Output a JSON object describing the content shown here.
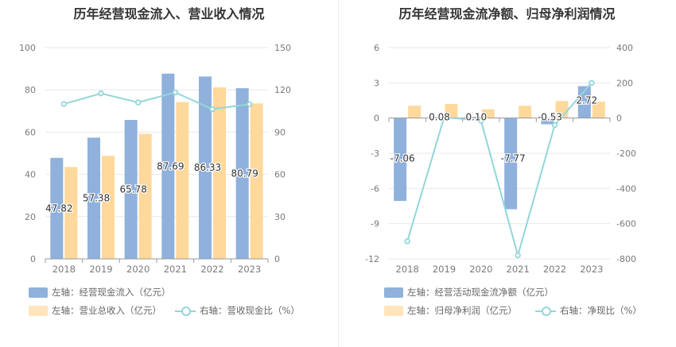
{
  "colors": {
    "bar1": "#8fb1dc",
    "bar2": "#ffd99b",
    "line": "#93d6d8",
    "axis_text": "#7a7a7a",
    "grid": "#e8e8e8"
  },
  "chart_data": [
    {
      "type": "bar",
      "title": "历年经营现金流入、营业收入情况",
      "categories": [
        "2018",
        "2019",
        "2020",
        "2021",
        "2022",
        "2023"
      ],
      "series": [
        {
          "name": "左轴：经营现金流入（亿元）",
          "axis": "left",
          "type": "bar",
          "values": [
            47.82,
            57.38,
            65.78,
            87.69,
            86.33,
            80.79
          ],
          "labels": [
            "47.82",
            "57.38",
            "65.78",
            "87.69",
            "86.33",
            "80.79"
          ]
        },
        {
          "name": "左轴：营业总收入（亿元）",
          "axis": "left",
          "type": "bar",
          "values": [
            43.5,
            48.8,
            59.2,
            74.2,
            81.2,
            73.6
          ]
        },
        {
          "name": "右轴：营收现金比（%）",
          "axis": "right",
          "type": "line",
          "values": [
            110,
            117.5,
            111.1,
            118.2,
            106.3,
            109.8
          ]
        }
      ],
      "left_axis": {
        "min": 0,
        "max": 100,
        "ticks": [
          "0",
          "20",
          "40",
          "60",
          "80",
          "100"
        ]
      },
      "right_axis": {
        "min": 0,
        "max": 150,
        "ticks": [
          "0",
          "30",
          "60",
          "90",
          "120",
          "150"
        ]
      }
    },
    {
      "type": "bar",
      "title": "历年经营现金流净额、归母净利润情况",
      "categories": [
        "2018",
        "2019",
        "2020",
        "2021",
        "2022",
        "2023"
      ],
      "series": [
        {
          "name": "左轴：经营活动现金流净额（亿元）",
          "axis": "left",
          "type": "bar",
          "values": [
            -7.06,
            0.08,
            0.1,
            -7.77,
            -0.53,
            2.72
          ],
          "labels": [
            "-7.06",
            "0.08",
            "0.10",
            "-7.77",
            "-0.53",
            "2.72"
          ]
        },
        {
          "name": "左轴：归母净利润（亿元）",
          "axis": "left",
          "type": "bar",
          "values": [
            1.05,
            1.2,
            0.75,
            1.05,
            1.45,
            1.4
          ]
        },
        {
          "name": "右轴：净现比（%）",
          "axis": "right",
          "type": "line",
          "values": [
            -700,
            5,
            -15,
            -780,
            -40,
            200
          ]
        }
      ],
      "left_axis": {
        "min": -12,
        "max": 6,
        "ticks": [
          "-12",
          "-9",
          "-6",
          "-3",
          "0",
          "3",
          "6"
        ]
      },
      "right_axis": {
        "min": -800,
        "max": 400,
        "ticks": [
          "-800",
          "-600",
          "-400",
          "-200",
          "0",
          "200",
          "400"
        ]
      }
    }
  ]
}
